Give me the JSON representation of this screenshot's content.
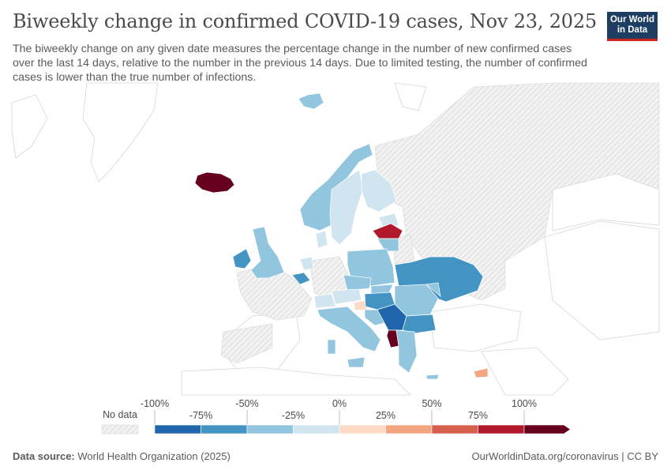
{
  "header": {
    "title": "Biweekly change in confirmed COVID-19 cases, Nov 23, 2025",
    "subtitle": "The biweekly change on any given date measures the percentage change in the number of new confirmed cases over the last 14 days, relative to the number in the previous 14 days. Due to limited testing, the number of confirmed cases is lower than the true number of infections."
  },
  "logo": {
    "line1": "Our World",
    "line2": "in Data"
  },
  "legend": {
    "no_data_label": "No data",
    "upper_ticks": [
      "-100%",
      "-50%",
      "0%",
      "50%",
      "100%"
    ],
    "lower_ticks": [
      "-75%",
      "-25%",
      "25%",
      "75%"
    ],
    "bins": [
      {
        "from": -100,
        "to": -75,
        "color": "#2166ac"
      },
      {
        "from": -75,
        "to": -50,
        "color": "#4393c3"
      },
      {
        "from": -50,
        "to": -25,
        "color": "#92c5de"
      },
      {
        "from": -25,
        "to": 0,
        "color": "#d1e5f0"
      },
      {
        "from": 0,
        "to": 25,
        "color": "#fddbc7"
      },
      {
        "from": 25,
        "to": 50,
        "color": "#f4a582"
      },
      {
        "from": 50,
        "to": 75,
        "color": "#d6604d"
      },
      {
        "from": 75,
        "to": 100,
        "color": "#b2182b"
      },
      {
        "from": 100,
        "to": null,
        "color": "#67001f"
      }
    ]
  },
  "map_data": {
    "regions": [
      {
        "name": "Iceland",
        "bin": ">100%",
        "color": "#67001f"
      },
      {
        "name": "Norway",
        "bin": "-50% to -25%",
        "color": "#92c5de"
      },
      {
        "name": "Sweden",
        "bin": "-25% to 0%",
        "color": "#d1e5f0"
      },
      {
        "name": "Finland",
        "bin": "-25% to 0%",
        "color": "#d1e5f0"
      },
      {
        "name": "Latvia",
        "bin": "75% to 100%",
        "color": "#b2182b"
      },
      {
        "name": "Ireland",
        "bin": "-75% to -50%",
        "color": "#4393c3"
      },
      {
        "name": "United Kingdom",
        "bin": "-50% to -25%",
        "color": "#92c5de"
      },
      {
        "name": "Belgium",
        "bin": "-75% to -50%",
        "color": "#4393c3"
      },
      {
        "name": "Poland",
        "bin": "-50% to -25%",
        "color": "#92c5de"
      },
      {
        "name": "Ukraine",
        "bin": "-75% to -50%",
        "color": "#4393c3"
      },
      {
        "name": "Slovenia",
        "bin": "0% to 25%",
        "color": "#fddbc7"
      },
      {
        "name": "Serbia",
        "bin": "-100% to -75%",
        "color": "#2166ac"
      },
      {
        "name": "Albania",
        "bin": ">100%",
        "color": "#67001f"
      },
      {
        "name": "Bulgaria",
        "bin": "-75% to -50%",
        "color": "#4393c3"
      },
      {
        "name": "Cyprus",
        "bin": "25% to 50%",
        "color": "#f4a582"
      }
    ]
  },
  "footer": {
    "source_label": "Data source:",
    "source_text": "World Health Organization (2025)",
    "url_text": "OurWorldinData.org/coronavirus | CC BY"
  }
}
